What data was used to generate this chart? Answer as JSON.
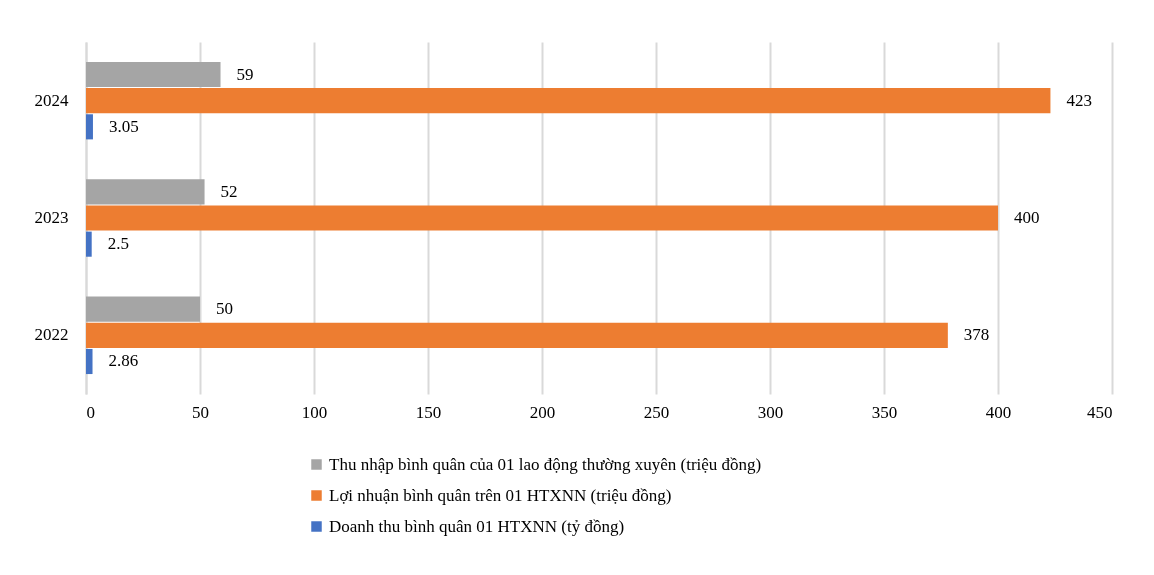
{
  "chart_data": {
    "type": "bar",
    "orientation": "horizontal",
    "categories": [
      "2024",
      "2023",
      "2022"
    ],
    "series": [
      {
        "name": "Thu nhập bình quân của 01 lao động thường xuyên (triệu đồng)",
        "color": "#a5a5a5",
        "values": [
          59,
          52,
          50
        ]
      },
      {
        "name": "Lợi nhuận bình quân trên 01 HTXNN (triệu đồng)",
        "color": "#ed7d31",
        "values": [
          423,
          400,
          378
        ]
      },
      {
        "name": "Doanh thu bình quân 01 HTXNN (tỷ đồng)",
        "color": "#4472c4",
        "values": [
          3.05,
          2.5,
          2.86
        ]
      }
    ],
    "xlim": [
      0,
      450
    ],
    "xticks": [
      0,
      50,
      100,
      150,
      200,
      250,
      300,
      350,
      400,
      450
    ],
    "grid": "x",
    "legend": "bottom",
    "data_labels": true
  }
}
